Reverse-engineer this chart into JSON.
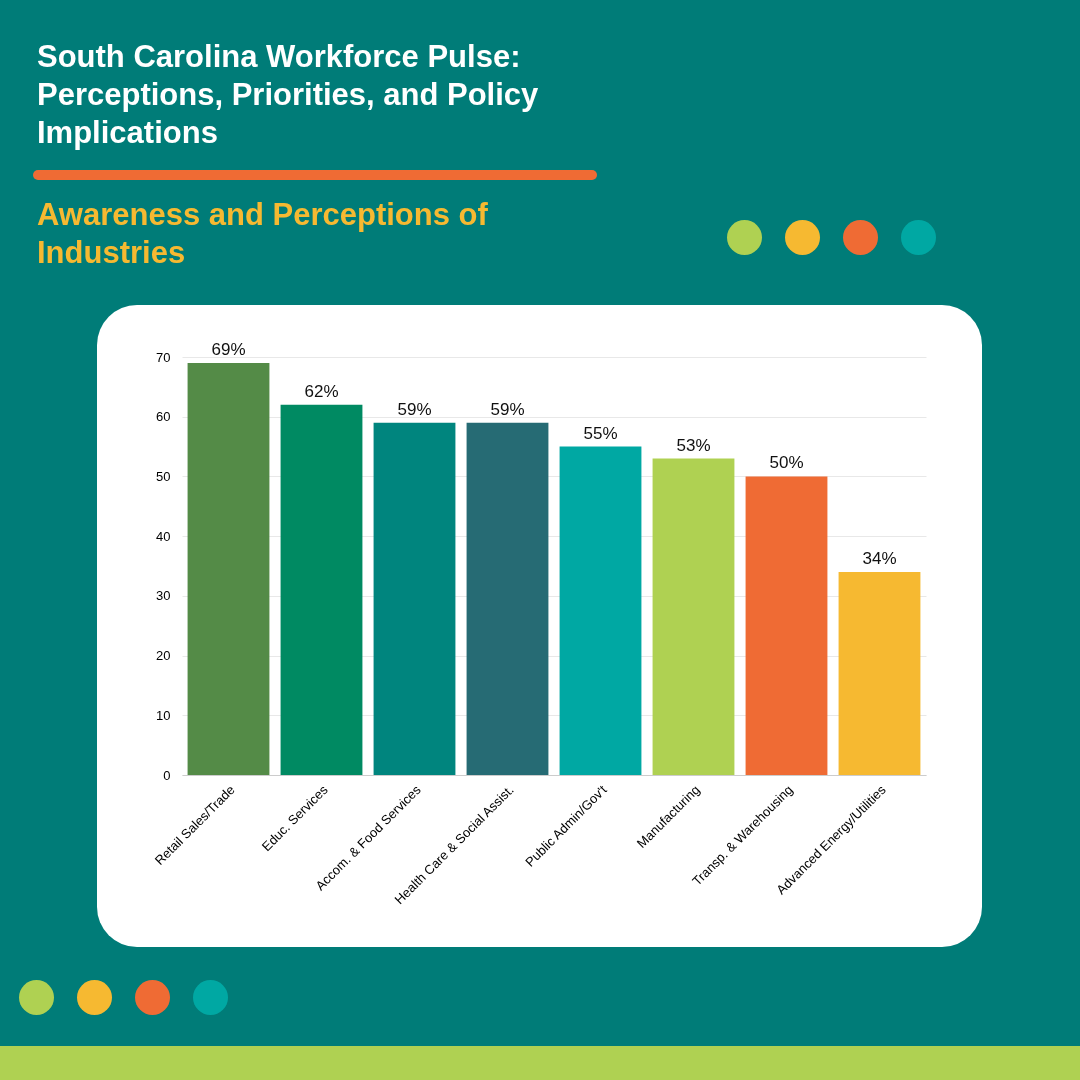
{
  "chart_data": {
    "type": "bar",
    "title": "South Carolina Workforce Pulse: Perceptions, Priorities, and Policy Implications",
    "subtitle": "Awareness and Perceptions of Industries",
    "categories": [
      "Retail Sales/Trade",
      "Educ. Services",
      "Accom. & Food Services",
      "Health Care & Social Assist.",
      "Public Admin/Gov't",
      "Manufacturing",
      "Transp. & Warehousing",
      "Advanced Energy/Utilities"
    ],
    "values": [
      69,
      62,
      59,
      59,
      55,
      53,
      50,
      34
    ],
    "value_labels": [
      "69%",
      "62%",
      "59%",
      "59%",
      "55%",
      "53%",
      "50%",
      "34%"
    ],
    "colors": [
      "#548b47",
      "#008a62",
      "#00857e",
      "#266b74",
      "#00a8a3",
      "#afd152",
      "#ef6b34",
      "#f6b931"
    ],
    "ylim": [
      0,
      70
    ],
    "yticks": [
      0,
      10,
      20,
      30,
      40,
      50,
      60,
      70
    ],
    "grid": "y"
  }
}
